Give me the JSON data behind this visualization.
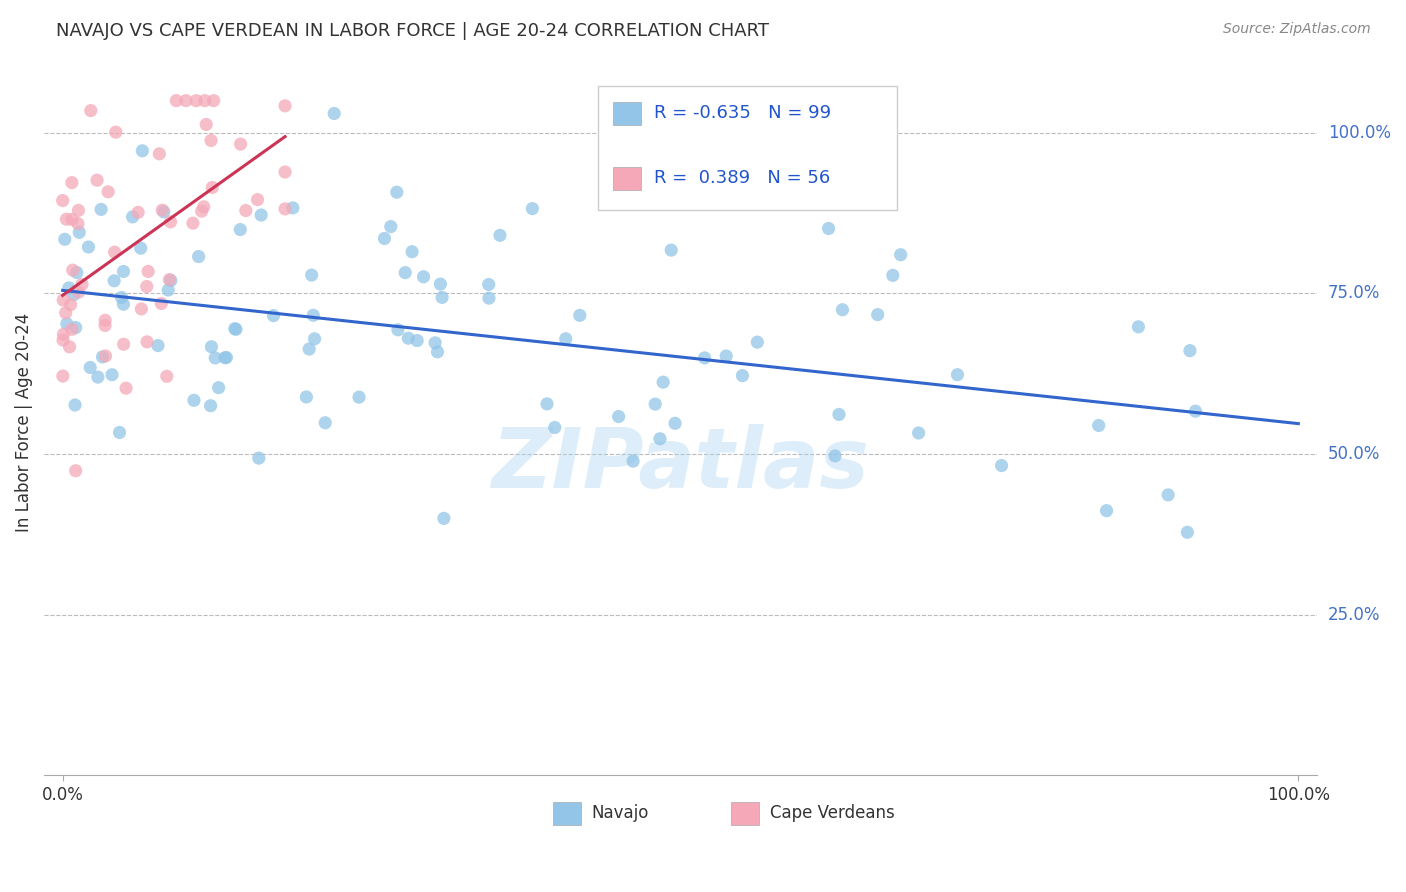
{
  "title": "NAVAJO VS CAPE VERDEAN IN LABOR FORCE | AGE 20-24 CORRELATION CHART",
  "source": "Source: ZipAtlas.com",
  "ylabel": "In Labor Force | Age 20-24",
  "ytick_labels": [
    "25.0%",
    "50.0%",
    "75.0%",
    "100.0%"
  ],
  "ytick_values": [
    0.25,
    0.5,
    0.75,
    1.0
  ],
  "legend_navajo": "Navajo",
  "legend_cape": "Cape Verdeans",
  "R_navajo": -0.635,
  "N_navajo": 99,
  "R_cape": 0.389,
  "N_cape": 56,
  "navajo_color": "#92C5E8",
  "cape_color": "#F4A8B8",
  "navajo_line_color": "#3366CC",
  "cape_line_color": "#CC3355",
  "watermark": "ZIPatlas",
  "seed_nav": 12,
  "seed_cape": 77
}
